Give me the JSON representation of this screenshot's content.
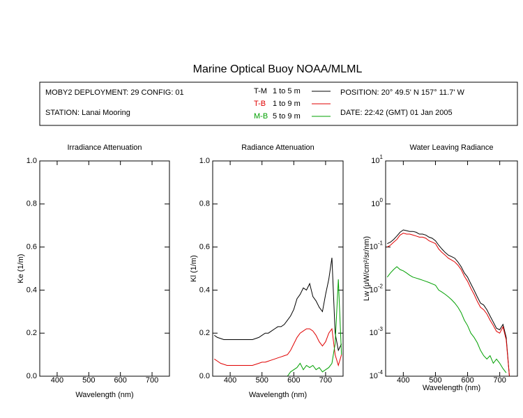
{
  "title": "Marine Optical Buoy NOAA/MLML",
  "info": {
    "deployment": "MOBY2 DEPLOYMENT: 29 CONFIG: 01",
    "station": "STATION: Lanai Mooring",
    "position": "POSITION: 20° 49.5' N   157° 11.7' W",
    "date": "DATE: 22:42 (GMT) 01 Jan 2005"
  },
  "chart_data": [
    {
      "type": "line",
      "title": "Irradiance Attenuation",
      "xlabel": "Wavelength (nm)",
      "ylabel": "Ke  (1/m)",
      "xlim": [
        345,
        755
      ],
      "xticks": [
        400,
        500,
        600,
        700
      ],
      "ylim": [
        0,
        1
      ],
      "yticks": [
        {
          "value": 0,
          "label": "0.0"
        },
        0.2,
        0.4,
        0.6,
        0.8,
        {
          "value": 1,
          "label": "1.0"
        }
      ]
    },
    {
      "type": "line",
      "title": "Radiance Attenuation",
      "xlabel": "Wavelength (nm)",
      "ylabel": "Kl  (1/m)",
      "xlim": [
        345,
        755
      ],
      "xticks": [
        400,
        500,
        600,
        700
      ],
      "ylim": [
        0,
        1
      ],
      "yticks": [
        {
          "value": 0,
          "label": "0.0"
        },
        0.2,
        0.4,
        0.6,
        0.8,
        {
          "value": 1,
          "label": "1.0"
        }
      ],
      "x": [
        350,
        360,
        370,
        380,
        390,
        400,
        410,
        420,
        430,
        440,
        450,
        460,
        470,
        480,
        490,
        500,
        510,
        520,
        530,
        540,
        550,
        560,
        570,
        580,
        590,
        600,
        610,
        620,
        630,
        640,
        650,
        660,
        670,
        680,
        690,
        700,
        710,
        720,
        730,
        740,
        750
      ],
      "series": [
        {
          "name": "T-M",
          "depth": "1 to 5  m",
          "color": "#000000",
          "values": [
            0.19,
            0.18,
            0.175,
            0.17,
            0.17,
            0.17,
            0.17,
            0.17,
            0.17,
            0.17,
            0.17,
            0.17,
            0.17,
            0.175,
            0.18,
            0.19,
            0.2,
            0.2,
            0.21,
            0.22,
            0.23,
            0.23,
            0.24,
            0.26,
            0.28,
            0.31,
            0.36,
            0.38,
            0.41,
            0.4,
            0.43,
            0.37,
            0.35,
            0.32,
            0.3,
            0.38,
            0.45,
            0.55,
            0.2,
            0.12,
            0.15
          ]
        },
        {
          "name": "T-B",
          "depth": "1 to 9  m",
          "color": "#e00000",
          "values": [
            0.08,
            0.07,
            0.06,
            0.055,
            0.05,
            0.05,
            0.05,
            0.05,
            0.05,
            0.05,
            0.05,
            0.05,
            0.05,
            0.055,
            0.06,
            0.065,
            0.065,
            0.07,
            0.075,
            0.08,
            0.085,
            0.09,
            0.095,
            0.1,
            0.12,
            0.15,
            0.18,
            0.2,
            0.21,
            0.22,
            0.22,
            0.21,
            0.19,
            0.16,
            0.14,
            0.16,
            0.2,
            0.22,
            0.1,
            0.05,
            0.1
          ]
        },
        {
          "name": "M-B",
          "depth": "5 to 9  m",
          "color": "#00a000",
          "values": [
            null,
            null,
            null,
            null,
            null,
            null,
            null,
            null,
            null,
            null,
            null,
            null,
            null,
            null,
            null,
            null,
            null,
            null,
            null,
            null,
            null,
            null,
            null,
            0,
            0.02,
            0.03,
            0.04,
            0.06,
            0.03,
            0.05,
            0.04,
            0.05,
            0.03,
            0.04,
            0.02,
            0.03,
            0.04,
            0.06,
            0.15,
            0.45,
            0.1
          ]
        }
      ]
    },
    {
      "type": "line",
      "title": "Water Leaving Radiance",
      "xlabel": "Wavelength (nm)",
      "ylabel": "Lw  (μW/cm²/sr/nm)",
      "log_y": true,
      "xlim": [
        345,
        755
      ],
      "xticks": [
        400,
        500,
        600,
        700
      ],
      "ylim": [
        0.0001,
        10
      ],
      "yticks": [
        {
          "value": 0.0001,
          "label": "10",
          "exponent": "-4"
        },
        {
          "value": 0.001,
          "label": "10",
          "exponent": "-3"
        },
        {
          "value": 0.01,
          "label": "10",
          "exponent": "-2"
        },
        {
          "value": 0.1,
          "label": "10",
          "exponent": "-1"
        },
        {
          "value": 1,
          "label": "10",
          "exponent": "0"
        },
        {
          "value": 10,
          "label": "10",
          "exponent": "1"
        }
      ],
      "x": [
        350,
        360,
        370,
        380,
        390,
        400,
        410,
        420,
        430,
        440,
        450,
        460,
        470,
        480,
        490,
        500,
        510,
        520,
        530,
        540,
        550,
        560,
        570,
        580,
        590,
        600,
        610,
        620,
        630,
        640,
        650,
        660,
        670,
        680,
        690,
        700,
        710,
        720,
        730,
        740,
        750
      ],
      "series": [
        {
          "name": "T-M",
          "color": "#000000",
          "values": [
            0.12,
            0.13,
            0.15,
            0.18,
            0.22,
            0.25,
            0.24,
            0.23,
            0.23,
            0.22,
            0.2,
            0.2,
            0.19,
            0.17,
            0.16,
            0.14,
            0.11,
            0.09,
            0.075,
            0.065,
            0.06,
            0.055,
            0.045,
            0.035,
            0.025,
            0.02,
            0.014,
            0.01,
            0.007,
            0.005,
            0.0045,
            0.0035,
            0.0025,
            0.0018,
            0.0013,
            0.0012,
            0.0016,
            0.0008,
            0.0001,
            null,
            null
          ]
        },
        {
          "name": "T-B",
          "color": "#e00000",
          "values": [
            0.1,
            0.11,
            0.13,
            0.15,
            0.19,
            0.21,
            0.2,
            0.2,
            0.19,
            0.18,
            0.17,
            0.17,
            0.16,
            0.14,
            0.13,
            0.12,
            0.09,
            0.075,
            0.065,
            0.055,
            0.05,
            0.045,
            0.038,
            0.03,
            0.021,
            0.016,
            0.011,
            0.008,
            0.0055,
            0.004,
            0.0035,
            0.0028,
            0.002,
            0.0015,
            0.0011,
            0.001,
            0.0014,
            0.0007,
            0.0001,
            null,
            null
          ]
        },
        {
          "name": "M-B",
          "color": "#00a000",
          "values": [
            0.02,
            0.025,
            0.03,
            0.035,
            0.03,
            0.028,
            0.025,
            0.022,
            0.02,
            0.019,
            0.018,
            0.017,
            0.016,
            0.015,
            0.014,
            0.013,
            0.01,
            0.009,
            0.008,
            0.007,
            0.006,
            0.005,
            0.004,
            0.003,
            0.002,
            0.0015,
            0.001,
            0.0008,
            0.0006,
            0.0004,
            0.0003,
            0.00025,
            0.0003,
            0.0002,
            0.00025,
            0.0002,
            0.00015,
            0.00012,
            null,
            null,
            null
          ]
        }
      ]
    }
  ]
}
